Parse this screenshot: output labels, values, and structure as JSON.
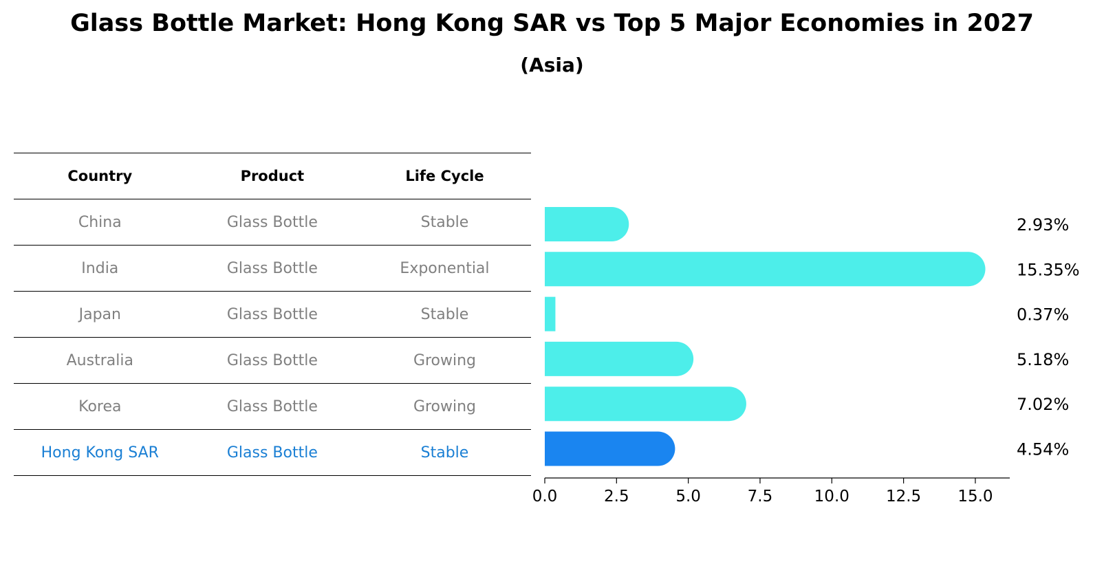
{
  "title": "Glass Bottle Market: Hong Kong SAR vs Top 5 Major Economies in 2027",
  "subtitle": "(Asia)",
  "table": {
    "headers": [
      "Country",
      "Product",
      "Life Cycle"
    ],
    "rows": [
      {
        "country": "China",
        "product": "Glass Bottle",
        "life_cycle": "Stable"
      },
      {
        "country": "India",
        "product": "Glass Bottle",
        "life_cycle": "Exponential"
      },
      {
        "country": "Japan",
        "product": "Glass Bottle",
        "life_cycle": "Stable"
      },
      {
        "country": "Australia",
        "product": "Glass Bottle",
        "life_cycle": "Growing"
      },
      {
        "country": "Korea",
        "product": "Glass Bottle",
        "life_cycle": "Growing"
      },
      {
        "country": "Hong Kong SAR",
        "product": "Glass Bottle",
        "life_cycle": "Stable"
      }
    ]
  },
  "colors": {
    "bar": "#4deeea",
    "highlight_bar": "#1a85f0",
    "muted_text": "#808080",
    "highlight_text": "#1a7fd4"
  },
  "chart_data": {
    "type": "bar",
    "orientation": "horizontal",
    "categories": [
      "China",
      "India",
      "Japan",
      "Australia",
      "Korea",
      "Hong Kong SAR"
    ],
    "values": [
      2.93,
      15.35,
      0.37,
      5.18,
      7.02,
      4.54
    ],
    "value_labels": [
      "2.93%",
      "15.35%",
      "0.37%",
      "5.18%",
      "7.02%",
      "4.54%"
    ],
    "highlight_index": 5,
    "xlim": [
      0,
      16.2
    ],
    "xticks": [
      0.0,
      2.5,
      5.0,
      7.5,
      10.0,
      12.5,
      15.0
    ],
    "xtick_labels": [
      "0.0",
      "2.5",
      "5.0",
      "7.5",
      "10.0",
      "12.5",
      "15.0"
    ]
  }
}
